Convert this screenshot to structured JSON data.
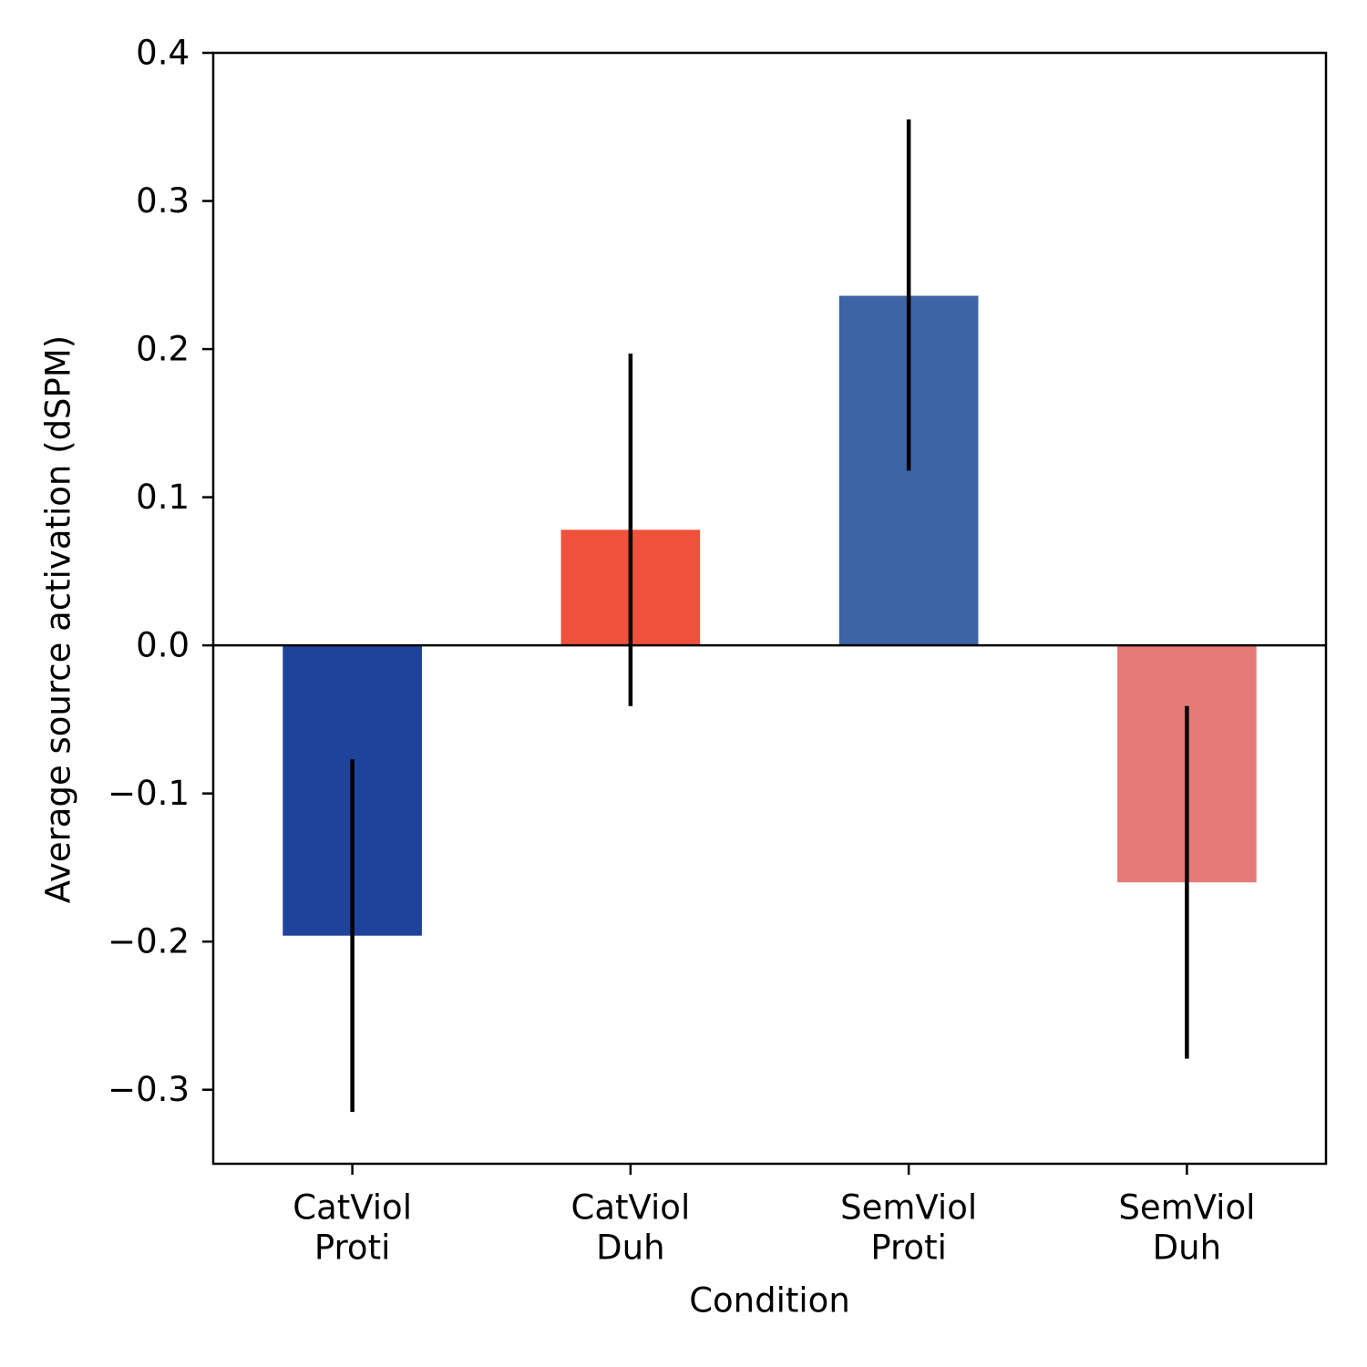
{
  "chart_data": {
    "type": "bar",
    "categories": [
      [
        "CatViol",
        "Proti"
      ],
      [
        "CatViol",
        "Duh"
      ],
      [
        "SemViol",
        "Proti"
      ],
      [
        "SemViol",
        "Duh"
      ]
    ],
    "values": [
      -0.196,
      0.078,
      0.236,
      -0.16
    ],
    "error_low": [
      -0.315,
      -0.041,
      0.118,
      -0.279
    ],
    "error_high": [
      -0.077,
      0.197,
      0.355,
      -0.041
    ],
    "bar_colors": [
      "#1f429a",
      "#ef513b",
      "#3d64a4",
      "#e67a76"
    ],
    "error_color": "#000000",
    "xlabel": "Condition",
    "ylabel": "Average source activation (dSPM)",
    "ylim": [
      -0.35,
      0.4
    ],
    "yticks": [
      -0.3,
      -0.2,
      -0.1,
      0.0,
      0.1,
      0.2,
      0.3,
      0.4
    ],
    "ytick_labels": [
      "−0.3",
      "−0.2",
      "−0.1",
      "0.0",
      "0.1",
      "0.2",
      "0.3",
      "0.4"
    ],
    "zero_line": true,
    "grid": false
  }
}
